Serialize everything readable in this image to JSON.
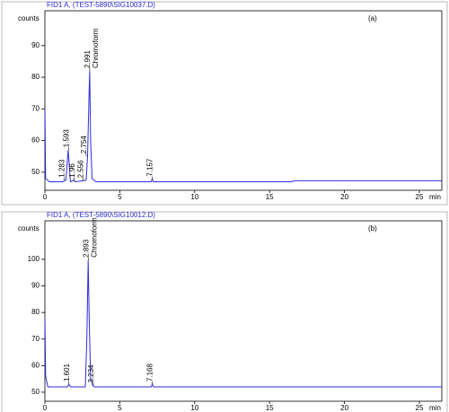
{
  "chart_data": [
    {
      "type": "line",
      "title": "FID1 A, (TEST-5890\\SIG10037.D)",
      "panel_label": "(a)",
      "ylabel": "counts",
      "xlabel": "min",
      "color": "#2c2cdc",
      "x": [
        0,
        0.05,
        0.3,
        1.2,
        1.4,
        1.55,
        1.6,
        1.7,
        1.95,
        2.0,
        2.55,
        2.75,
        2.85,
        2.95,
        2.99,
        3.05,
        3.15,
        3.4,
        7.1,
        7.16,
        7.25,
        16.5,
        16.6,
        26.5
      ],
      "values": [
        70,
        48,
        47,
        47,
        47.5,
        57,
        54,
        47,
        47.5,
        47,
        47.3,
        47.5,
        55,
        75,
        82,
        60,
        48,
        47,
        47,
        47.8,
        47,
        47,
        47.3,
        47.3
      ],
      "xlim": [
        0,
        26.5
      ],
      "xticks": [
        0,
        5,
        10,
        15,
        20,
        25
      ],
      "ylim": [
        44.3,
        101
      ],
      "yticks": [
        50,
        60,
        70,
        80,
        90
      ],
      "annotations": [
        {
          "x": 1.283
        },
        {
          "x": 1.593
        },
        {
          "x": 1.96
        },
        {
          "x": 2.556
        },
        {
          "x": 2.754
        },
        {
          "x": 2.991,
          "text": "Chromoform"
        },
        {
          "x": 7.157
        }
      ]
    },
    {
      "type": "line",
      "title": "FID1 A, (TEST-5890\\SIG10012.D)",
      "panel_label": "(b)",
      "ylabel": "counts",
      "xlabel": "min",
      "color": "#2c2cdc",
      "x": [
        0,
        0.05,
        0.2,
        1.5,
        1.6,
        1.7,
        2.7,
        2.8,
        2.89,
        2.95,
        3.05,
        3.2,
        3.3,
        7.1,
        7.17,
        7.25,
        16.5,
        26.5
      ],
      "values": [
        78,
        56,
        52,
        52,
        53,
        52,
        52,
        70,
        99.7,
        80,
        55,
        52.5,
        52,
        52,
        53,
        52,
        52,
        52
      ],
      "xlim": [
        0,
        26.5
      ],
      "xticks": [
        0,
        5,
        10,
        15,
        20,
        25
      ],
      "ylim": [
        46.6,
        114.5
      ],
      "yticks": [
        50,
        60,
        70,
        80,
        90,
        100
      ],
      "annotations": [
        {
          "x": 1.601
        },
        {
          "x": 2.893,
          "text": "Chromoform"
        },
        {
          "x": 3.234
        },
        {
          "x": 7.168
        }
      ]
    }
  ]
}
